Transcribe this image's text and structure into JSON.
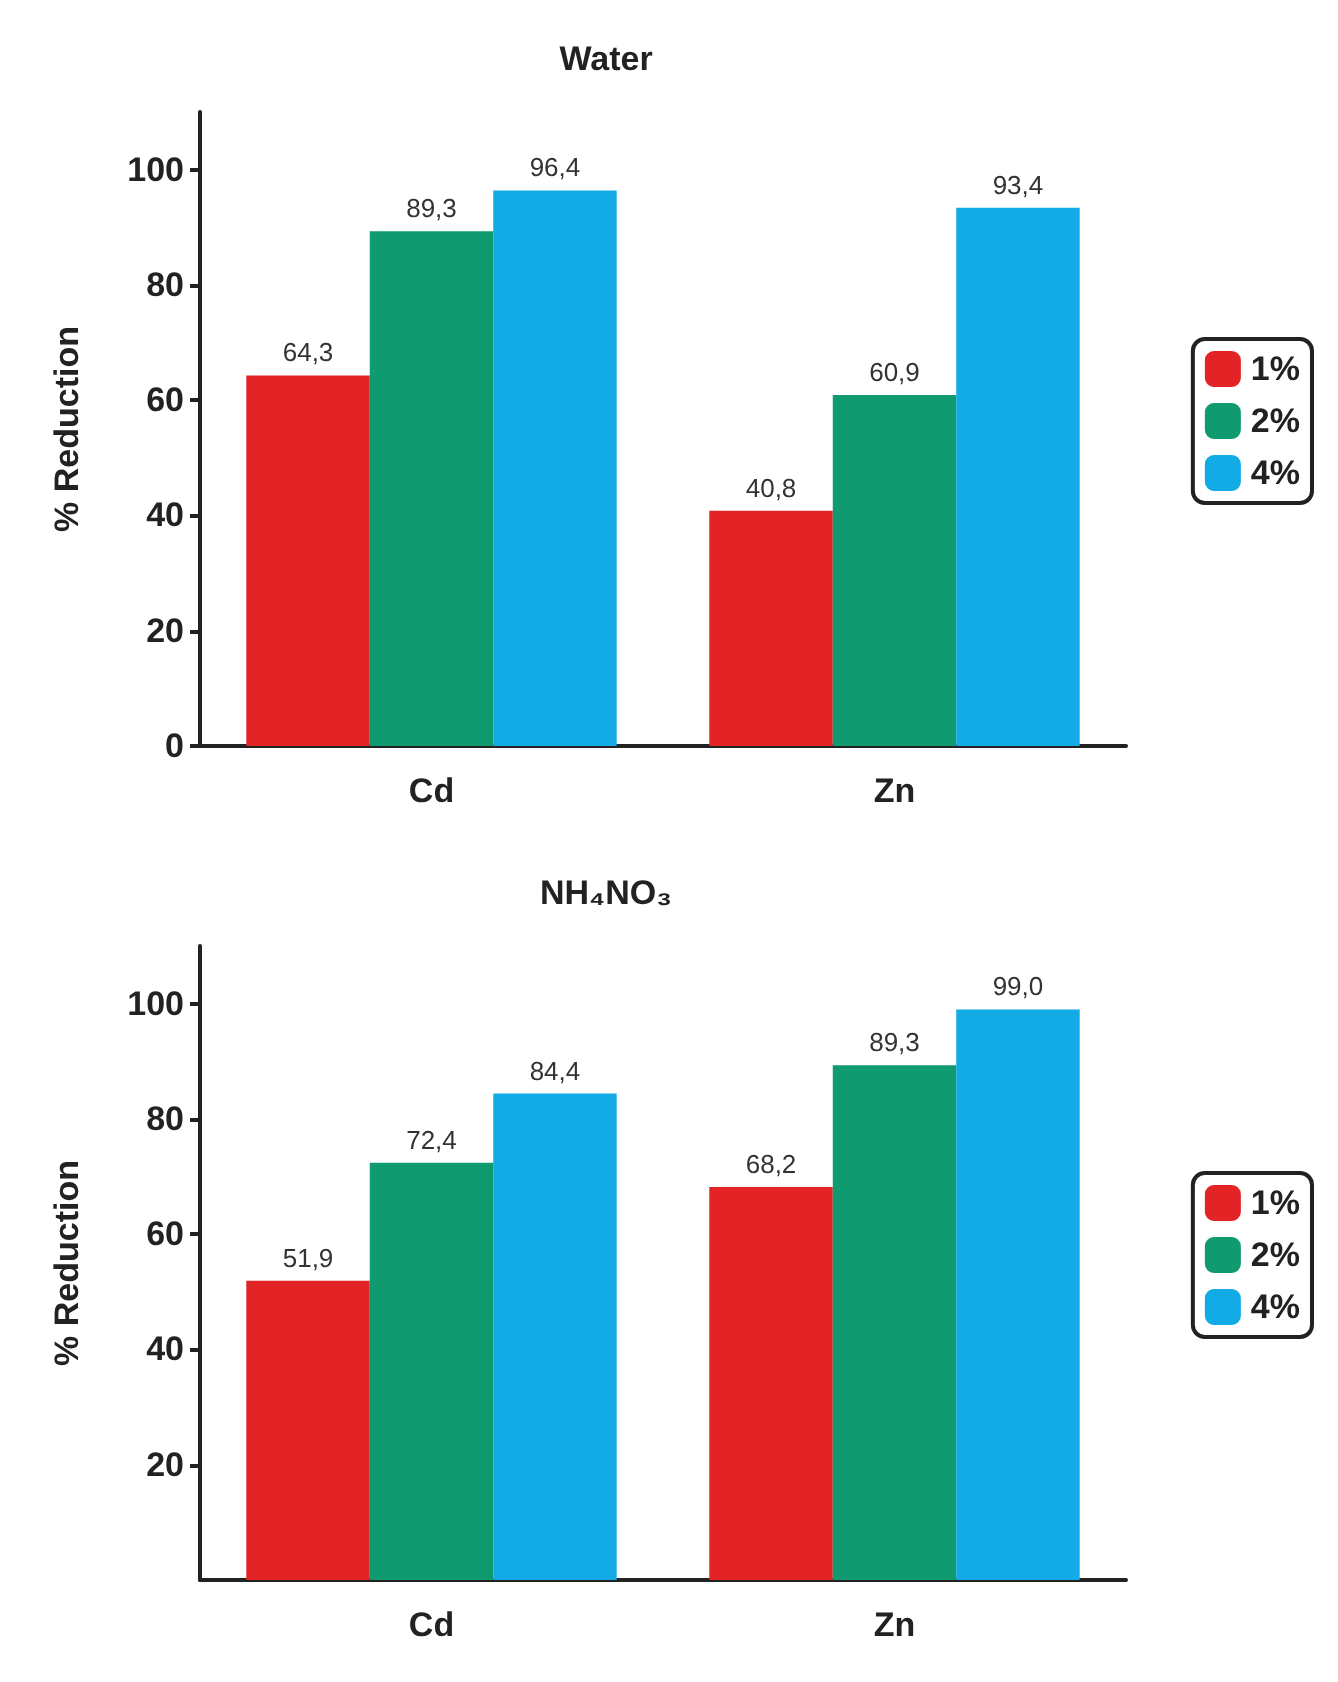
{
  "chart_data": [
    {
      "type": "bar",
      "title": "Water",
      "ylabel": "% Reduction",
      "categories": [
        "Cd",
        "Zn"
      ],
      "ylim": [
        0,
        110
      ],
      "yticks": [
        0,
        20,
        40,
        60,
        80,
        100
      ],
      "grid": false,
      "legend": "right",
      "series": [
        {
          "name": "1%",
          "color": "#e32427",
          "values": [
            64.3,
            40.8
          ],
          "value_labels": [
            "64,3",
            "40,8"
          ]
        },
        {
          "name": "2%",
          "color": "#109a6f",
          "values": [
            89.3,
            60.9
          ],
          "value_labels": [
            "89,3",
            "60,9"
          ]
        },
        {
          "name": "4%",
          "color": "#12abe6",
          "values": [
            96.4,
            93.4
          ],
          "value_labels": [
            "96,4",
            "93,4"
          ]
        }
      ]
    },
    {
      "type": "bar",
      "title": "NH₄NO₃",
      "ylabel": "% Reduction",
      "categories": [
        "Cd",
        "Zn"
      ],
      "ylim": [
        0,
        110
      ],
      "yticks": [
        20,
        40,
        60,
        80,
        100
      ],
      "grid": false,
      "legend": "right",
      "series": [
        {
          "name": "1%",
          "color": "#e32427",
          "values": [
            51.9,
            68.2
          ],
          "value_labels": [
            "51,9",
            "68,2"
          ]
        },
        {
          "name": "2%",
          "color": "#109a6f",
          "values": [
            72.4,
            89.3
          ],
          "value_labels": [
            "72,4",
            "89,3"
          ]
        },
        {
          "name": "4%",
          "color": "#12abe6",
          "values": [
            84.4,
            99.0
          ],
          "value_labels": [
            "84,4",
            "99,0"
          ]
        }
      ]
    }
  ]
}
